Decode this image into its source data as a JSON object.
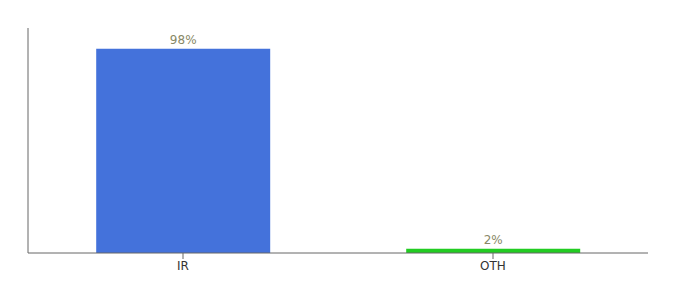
{
  "chart_data": {
    "type": "bar",
    "categories": [
      "IR",
      "OTH"
    ],
    "values": [
      98,
      2
    ],
    "value_labels": [
      "98%",
      "2%"
    ],
    "colors": [
      "#4472db",
      "#22cc22"
    ],
    "ylim": [
      0,
      108
    ],
    "data_labels": true,
    "tick_labels": "x",
    "grid": false
  }
}
